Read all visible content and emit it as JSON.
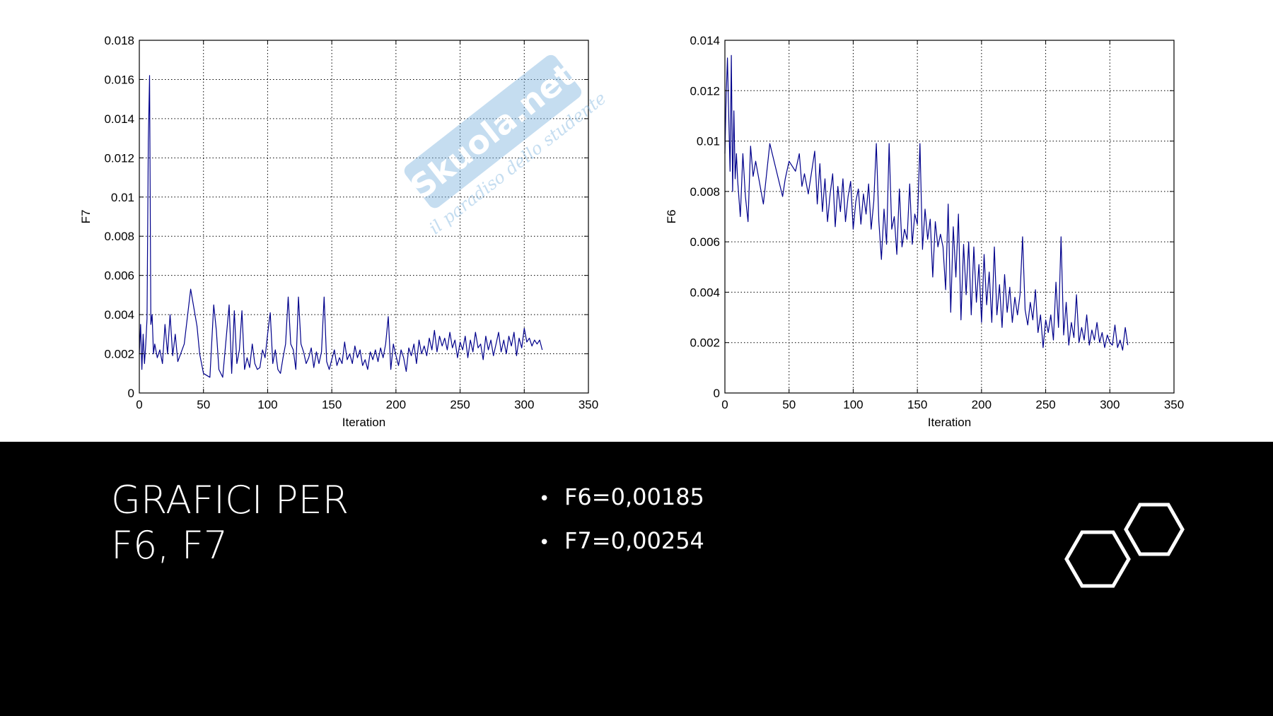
{
  "slide": {
    "title_line1": "GRAFICI PER",
    "title_line2": "F6, F7",
    "bullets": [
      "F6=0,00185",
      "F7=0,00254"
    ],
    "bullet_icon": "bullet-dot"
  },
  "watermark": {
    "text": "Skuola.net",
    "subtext": "il paradiso dello studente",
    "color": "#7fb5e0"
  },
  "colors": {
    "series": "#00008b",
    "grid": "#000000",
    "panel_background": "#ffffff",
    "slide_background": "#000000",
    "text": "#ffffff"
  },
  "chart_data": [
    {
      "type": "line",
      "xlabel": "Iteration",
      "ylabel": "F7",
      "xlim": [
        0,
        350
      ],
      "ylim": [
        0,
        0.018
      ],
      "xticks": [
        0,
        50,
        100,
        150,
        200,
        250,
        300,
        350
      ],
      "yticks": [
        0,
        0.002,
        0.004,
        0.006,
        0.008,
        0.01,
        0.012,
        0.014,
        0.016,
        0.018
      ],
      "ytick_labels": [
        "0",
        "0.002",
        "0.004",
        "0.006",
        "0.008",
        "0.01",
        "0.012",
        "0.014",
        "0.016",
        "0.018"
      ],
      "grid": true,
      "series": [
        {
          "x": [
            0,
            1,
            2,
            3,
            4,
            5,
            6,
            7,
            8,
            9,
            10,
            11,
            12,
            14,
            16,
            18,
            20,
            22,
            24,
            26,
            28,
            30,
            35,
            40,
            45,
            47,
            50,
            55,
            58,
            60,
            62,
            65,
            70,
            72,
            74,
            76,
            78,
            80,
            82,
            84,
            86,
            88,
            90,
            92,
            94,
            96,
            98,
            100,
            102,
            104,
            106,
            108,
            110,
            112,
            114,
            116,
            118,
            120,
            122,
            124,
            126,
            128,
            130,
            132,
            134,
            136,
            138,
            140,
            142,
            144,
            146,
            148,
            150,
            152,
            154,
            156,
            158,
            160,
            162,
            164,
            166,
            168,
            170,
            172,
            174,
            176,
            178,
            180,
            182,
            184,
            186,
            188,
            190,
            192,
            194,
            196,
            198,
            200,
            202,
            204,
            206,
            208,
            210,
            212,
            214,
            216,
            218,
            220,
            222,
            224,
            226,
            228,
            230,
            232,
            234,
            236,
            238,
            240,
            242,
            244,
            246,
            248,
            250,
            252,
            254,
            256,
            258,
            260,
            262,
            264,
            266,
            268,
            270,
            272,
            274,
            276,
            278,
            280,
            282,
            284,
            286,
            288,
            290,
            292,
            294,
            296,
            298,
            300,
            302,
            304,
            306,
            308,
            310,
            312,
            314
          ],
          "y": [
            0.002,
            0.0035,
            0.0012,
            0.003,
            0.0015,
            0.0025,
            0.0038,
            0.0128,
            0.0162,
            0.0035,
            0.004,
            0.002,
            0.0025,
            0.0018,
            0.0022,
            0.0015,
            0.0035,
            0.002,
            0.004,
            0.0019,
            0.003,
            0.0016,
            0.0025,
            0.0053,
            0.0034,
            0.002,
            0.001,
            0.0008,
            0.0045,
            0.0032,
            0.0012,
            0.0008,
            0.0045,
            0.001,
            0.0042,
            0.0015,
            0.0022,
            0.0042,
            0.0012,
            0.0018,
            0.0013,
            0.0025,
            0.0015,
            0.0012,
            0.0013,
            0.0022,
            0.0018,
            0.003,
            0.0041,
            0.0015,
            0.0022,
            0.0012,
            0.001,
            0.0018,
            0.0025,
            0.0049,
            0.0025,
            0.0022,
            0.0012,
            0.0049,
            0.0025,
            0.0021,
            0.0015,
            0.0018,
            0.0023,
            0.0013,
            0.0021,
            0.0015,
            0.0021,
            0.0049,
            0.0016,
            0.0012,
            0.0017,
            0.0022,
            0.0014,
            0.0018,
            0.0015,
            0.0026,
            0.0017,
            0.002,
            0.0015,
            0.0024,
            0.0018,
            0.0022,
            0.0014,
            0.0017,
            0.0012,
            0.0021,
            0.0017,
            0.0022,
            0.0016,
            0.0023,
            0.0018,
            0.0025,
            0.0039,
            0.0012,
            0.0025,
            0.0019,
            0.0014,
            0.0022,
            0.0018,
            0.0011,
            0.0023,
            0.0019,
            0.0025,
            0.0015,
            0.0027,
            0.002,
            0.0024,
            0.0019,
            0.0028,
            0.0022,
            0.0032,
            0.0021,
            0.0029,
            0.0024,
            0.0028,
            0.0022,
            0.0031,
            0.0023,
            0.0027,
            0.0018,
            0.0026,
            0.0022,
            0.0029,
            0.0018,
            0.0027,
            0.0021,
            0.0031,
            0.0023,
            0.0025,
            0.0017,
            0.0029,
            0.0022,
            0.0027,
            0.0019,
            0.0025,
            0.0031,
            0.0021,
            0.0027,
            0.002,
            0.0029,
            0.0024,
            0.0031,
            0.0019,
            0.0028,
            0.0023,
            0.0033,
            0.0026,
            0.0028,
            0.0024,
            0.0027,
            0.0025,
            0.0027,
            0.0022
          ]
        }
      ]
    },
    {
      "type": "line",
      "xlabel": "Iteration",
      "ylabel": "F6",
      "xlim": [
        0,
        350
      ],
      "ylim": [
        0,
        0.014
      ],
      "xticks": [
        0,
        50,
        100,
        150,
        200,
        250,
        300,
        350
      ],
      "yticks": [
        0,
        0.002,
        0.004,
        0.006,
        0.008,
        0.01,
        0.012,
        0.014
      ],
      "ytick_labels": [
        "0",
        "0.002",
        "0.004",
        "0.006",
        "0.008",
        "0.01",
        "0.012",
        "0.014"
      ],
      "grid": true,
      "series": [
        {
          "x": [
            0,
            1,
            2,
            3,
            4,
            5,
            6,
            7,
            8,
            9,
            10,
            12,
            14,
            16,
            18,
            20,
            22,
            24,
            30,
            35,
            45,
            47,
            50,
            55,
            58,
            60,
            62,
            65,
            70,
            72,
            74,
            76,
            78,
            80,
            82,
            84,
            86,
            88,
            90,
            92,
            94,
            96,
            98,
            100,
            102,
            104,
            106,
            108,
            110,
            112,
            114,
            116,
            118,
            120,
            122,
            124,
            126,
            128,
            130,
            132,
            134,
            136,
            138,
            140,
            142,
            144,
            146,
            148,
            150,
            152,
            154,
            156,
            158,
            160,
            162,
            164,
            166,
            168,
            170,
            172,
            174,
            176,
            178,
            180,
            182,
            184,
            186,
            188,
            190,
            192,
            194,
            196,
            198,
            200,
            202,
            204,
            206,
            208,
            210,
            212,
            214,
            216,
            218,
            220,
            222,
            224,
            226,
            228,
            230,
            232,
            234,
            236,
            238,
            240,
            242,
            244,
            246,
            248,
            250,
            252,
            254,
            256,
            258,
            260,
            262,
            264,
            266,
            268,
            270,
            272,
            274,
            276,
            278,
            280,
            282,
            284,
            286,
            288,
            290,
            292,
            294,
            296,
            298,
            300,
            302,
            304,
            306,
            308,
            310,
            312,
            314
          ],
          "y": [
            0.0095,
            0.0118,
            0.0133,
            0.011,
            0.0088,
            0.0134,
            0.008,
            0.0112,
            0.0085,
            0.0095,
            0.0084,
            0.007,
            0.0095,
            0.0078,
            0.0068,
            0.0098,
            0.0086,
            0.0092,
            0.0075,
            0.0099,
            0.0078,
            0.0085,
            0.0092,
            0.0088,
            0.0095,
            0.0082,
            0.0087,
            0.0079,
            0.0096,
            0.0075,
            0.0091,
            0.0072,
            0.0085,
            0.0068,
            0.0079,
            0.0087,
            0.0066,
            0.0082,
            0.0072,
            0.0085,
            0.0068,
            0.0078,
            0.0084,
            0.0065,
            0.0076,
            0.0081,
            0.0067,
            0.0079,
            0.0071,
            0.0083,
            0.0065,
            0.0076,
            0.0099,
            0.0068,
            0.0053,
            0.0073,
            0.0059,
            0.0099,
            0.0065,
            0.007,
            0.0055,
            0.0081,
            0.0058,
            0.0065,
            0.0061,
            0.0083,
            0.0059,
            0.0071,
            0.0067,
            0.0099,
            0.0057,
            0.0073,
            0.0061,
            0.0069,
            0.0046,
            0.0068,
            0.0058,
            0.0063,
            0.0058,
            0.0041,
            0.0075,
            0.0032,
            0.0066,
            0.0046,
            0.0071,
            0.0029,
            0.0059,
            0.0039,
            0.006,
            0.0031,
            0.0058,
            0.0036,
            0.0051,
            0.0028,
            0.0055,
            0.0035,
            0.0048,
            0.0028,
            0.0058,
            0.0031,
            0.0043,
            0.0026,
            0.0047,
            0.0032,
            0.0042,
            0.0028,
            0.0038,
            0.0031,
            0.0039,
            0.0062,
            0.0033,
            0.0027,
            0.0036,
            0.0029,
            0.0041,
            0.0024,
            0.0031,
            0.0018,
            0.0029,
            0.0024,
            0.0031,
            0.0021,
            0.0044,
            0.0026,
            0.0062,
            0.0023,
            0.0036,
            0.0019,
            0.0028,
            0.0022,
            0.0039,
            0.002,
            0.0026,
            0.0021,
            0.0031,
            0.0019,
            0.0025,
            0.0021,
            0.0028,
            0.002,
            0.0024,
            0.0018,
            0.0023,
            0.002,
            0.0019,
            0.0027,
            0.0018,
            0.0021,
            0.0017,
            0.0026,
            0.0019
          ]
        }
      ]
    }
  ]
}
